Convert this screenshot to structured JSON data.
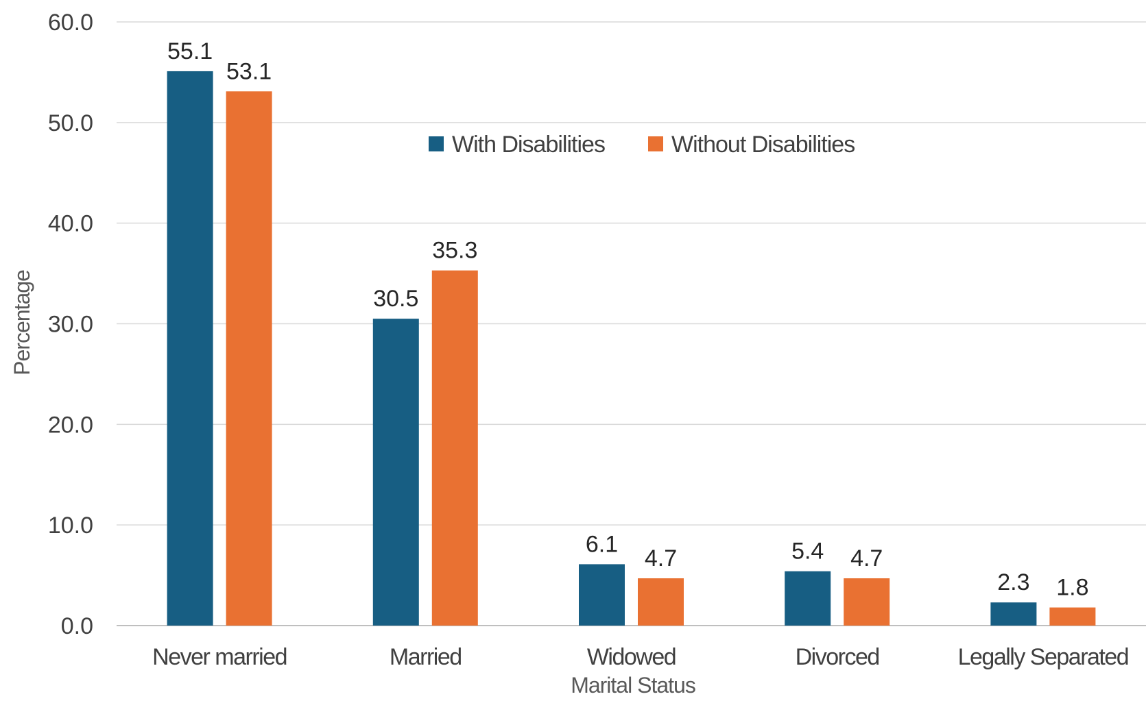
{
  "chart_data": {
    "type": "bar",
    "title": "",
    "xlabel": "Marital Status",
    "ylabel": "Percentage",
    "ylim": [
      0,
      60
    ],
    "yticks": [
      "0.0",
      "10.0",
      "20.0",
      "30.0",
      "40.0",
      "50.0",
      "60.0"
    ],
    "grid": true,
    "legend_position": "top-center",
    "categories": [
      "Never married",
      "Married",
      "Widowed",
      "Divorced",
      "Legally Separated"
    ],
    "series": [
      {
        "name": "With Disabilities",
        "color": "#175E83",
        "values": [
          55.1,
          30.5,
          6.1,
          5.4,
          2.3
        ],
        "labels": [
          "55.1",
          "30.5",
          "6.1",
          "5.4",
          "2.3"
        ]
      },
      {
        "name": "Without Disabilities",
        "color": "#E97132",
        "values": [
          53.1,
          35.3,
          4.7,
          4.7,
          1.8
        ],
        "labels": [
          "53.1",
          "35.3",
          "4.7",
          "4.7",
          "1.8"
        ]
      }
    ]
  }
}
